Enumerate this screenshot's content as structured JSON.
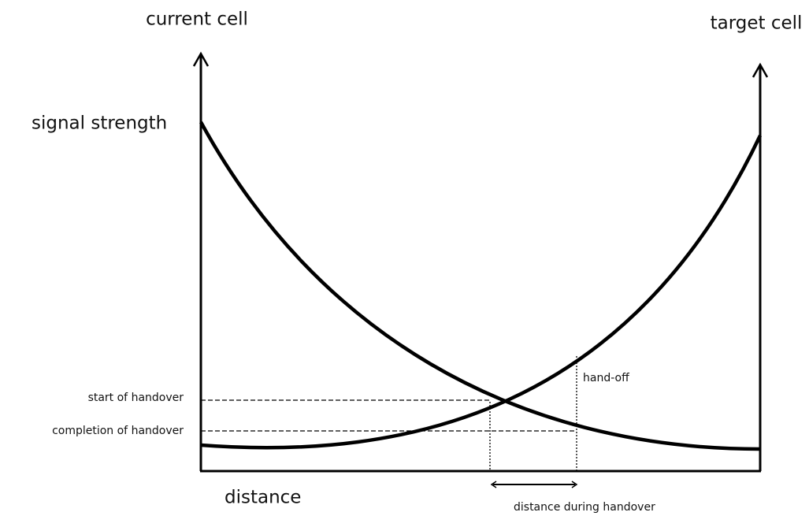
{
  "axes": {
    "y_left_label": "current cell",
    "y_right_label": "target cell",
    "y_label": "signal strength",
    "x_label": "distance"
  },
  "annotations": {
    "start": "start of handover",
    "completion": "completion of handover",
    "handoff": "hand-off",
    "span": "distance during handover"
  }
}
